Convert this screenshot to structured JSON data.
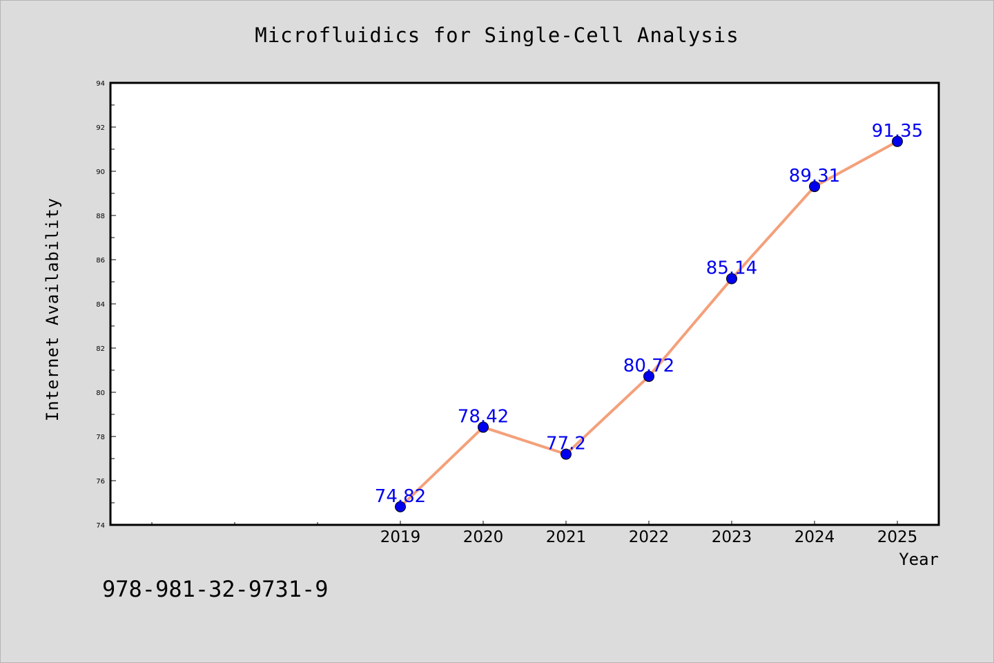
{
  "chart_data": {
    "type": "line",
    "title": "Microfluidics for Single-Cell Analysis",
    "xlabel": "Year",
    "ylabel": "Internet Availability",
    "categories": [
      "2019",
      "2020",
      "2021",
      "2022",
      "2023",
      "2024",
      "2025"
    ],
    "series": [
      {
        "values": [
          74.82,
          78.42,
          77.2,
          80.72,
          85.14,
          89.31,
          91.35
        ],
        "labels": [
          "74.82",
          "78.42",
          "77.2",
          "80.72",
          "85.14",
          "89.31",
          "91.35"
        ],
        "line_color": "#f4a07a",
        "marker_color": "#0000ee",
        "label_color": "#0000ee"
      }
    ],
    "ylim": [
      74,
      94
    ],
    "yticks": [
      "74",
      "76",
      "78",
      "80",
      "82",
      "84",
      "86",
      "88",
      "90",
      "92",
      "94"
    ],
    "grid": false,
    "legend": "none"
  },
  "footer": {
    "isbn": "978-981-32-9731-9"
  },
  "colors": {
    "background": "#dcdcdc",
    "plot_background": "#ffffff"
  }
}
